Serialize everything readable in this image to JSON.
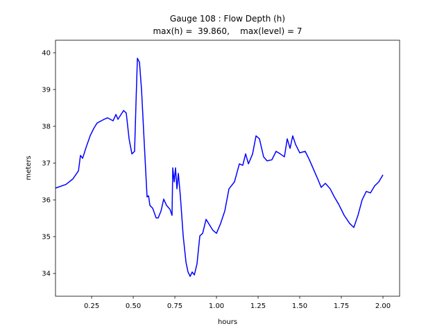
{
  "chart_data": {
    "type": "line",
    "title": "Gauge 108 : Flow Depth (h)",
    "subtitle": "max(h) =  39.860,    max(level) = 7",
    "x_label": "hours",
    "y_label": "meters",
    "xlim": [
      0.033,
      2.1
    ],
    "ylim": [
      33.38,
      40.34
    ],
    "xticks": [
      {
        "value": 0.25,
        "label": "0.25"
      },
      {
        "value": 0.5,
        "label": "0.50"
      },
      {
        "value": 0.75,
        "label": "0.75"
      },
      {
        "value": 1.0,
        "label": "1.00"
      },
      {
        "value": 1.25,
        "label": "1.25"
      },
      {
        "value": 1.5,
        "label": "1.50"
      },
      {
        "value": 1.75,
        "label": "1.75"
      },
      {
        "value": 2.0,
        "label": "2.00"
      }
    ],
    "yticks": [
      34,
      35,
      36,
      37,
      38,
      39,
      40
    ],
    "x": [
      0.033,
      0.096,
      0.1375,
      0.171,
      0.183,
      0.196,
      0.217,
      0.242,
      0.2625,
      0.283,
      0.325,
      0.346,
      0.379,
      0.396,
      0.408,
      0.442,
      0.458,
      0.475,
      0.492,
      0.508,
      0.517,
      0.525,
      0.5375,
      0.55,
      0.567,
      0.583,
      0.592,
      0.6,
      0.617,
      0.6375,
      0.65,
      0.667,
      0.683,
      0.7,
      0.721,
      0.733,
      0.7375,
      0.746,
      0.754,
      0.7625,
      0.771,
      0.783,
      0.8,
      0.817,
      0.829,
      0.842,
      0.854,
      0.867,
      0.883,
      0.9,
      0.917,
      0.9375,
      0.958,
      0.979,
      1.0,
      1.025,
      1.05,
      1.075,
      1.108,
      1.1375,
      1.158,
      1.175,
      1.192,
      1.217,
      1.2375,
      1.258,
      1.283,
      1.304,
      1.333,
      1.358,
      1.383,
      1.408,
      1.425,
      1.442,
      1.458,
      1.475,
      1.5,
      1.533,
      1.558,
      1.583,
      1.608,
      1.629,
      1.654,
      1.683,
      1.708,
      1.733,
      1.767,
      1.8,
      1.825,
      1.85,
      1.875,
      1.9,
      1.925,
      1.95,
      1.975,
      2.0
    ],
    "series": [
      {
        "name": "h",
        "color": "#0000ff",
        "values": [
          36.32,
          36.42,
          36.57,
          36.79,
          37.21,
          37.13,
          37.43,
          37.75,
          37.94,
          38.09,
          38.19,
          38.23,
          38.15,
          38.32,
          38.19,
          38.43,
          38.36,
          37.66,
          37.25,
          37.32,
          38.7,
          39.85,
          39.74,
          38.98,
          37.47,
          36.08,
          36.11,
          35.85,
          35.77,
          35.51,
          35.51,
          35.7,
          36.02,
          35.85,
          35.74,
          35.58,
          36.87,
          36.49,
          36.87,
          36.3,
          36.72,
          36.11,
          35.02,
          34.3,
          34.04,
          33.92,
          34.04,
          33.96,
          34.26,
          35.02,
          35.09,
          35.47,
          35.32,
          35.17,
          35.09,
          35.36,
          35.7,
          36.3,
          36.49,
          36.98,
          36.94,
          37.25,
          36.98,
          37.25,
          37.74,
          37.66,
          37.17,
          37.06,
          37.09,
          37.32,
          37.25,
          37.17,
          37.66,
          37.4,
          37.74,
          37.51,
          37.28,
          37.32,
          37.09,
          36.83,
          36.57,
          36.34,
          36.45,
          36.3,
          36.08,
          35.89,
          35.58,
          35.36,
          35.25,
          35.58,
          36.0,
          36.23,
          36.19,
          36.38,
          36.49,
          36.68
        ]
      }
    ]
  }
}
